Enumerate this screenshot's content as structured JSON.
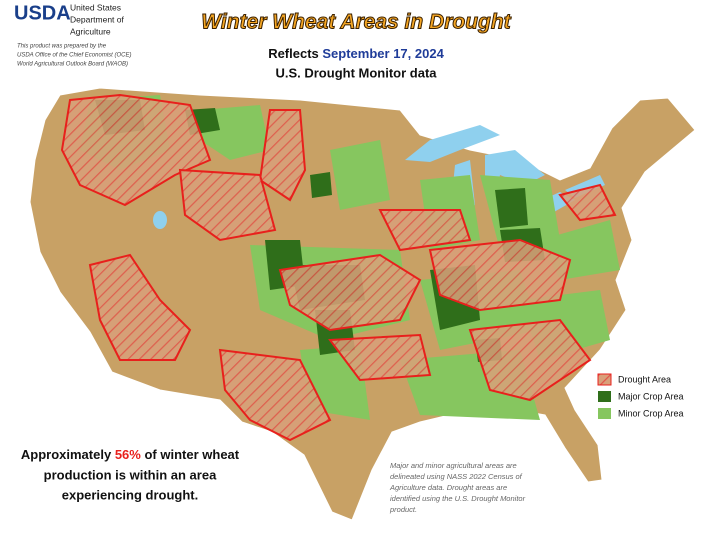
{
  "header": {
    "logo": "USDA",
    "agency": [
      "United States",
      "Department of",
      "Agriculture"
    ],
    "disclaimer": [
      "This product was prepared by the",
      "USDA Office of the Chief Economist (OCE)",
      "World Agricultural Outlook Board (WAOB)"
    ]
  },
  "title": "Winter Wheat Areas in Drought",
  "subtitle": {
    "prefix": "Reflects",
    "date": "September 17, 2024",
    "source": "U.S. Drought Monitor data"
  },
  "legend": [
    "Drought Area",
    "Major Crop Area",
    "Minor Crop Area"
  ],
  "summary": {
    "pre": "Approximately",
    "share": "56%",
    "post": "of winter wheat",
    "line2": "production is within an area",
    "line3": "experiencing drought."
  },
  "note": [
    "Major and minor agricultural areas are",
    "delineated using NASS 2022 Census of",
    "Agriculture data.  Drought areas are",
    "identified using the U.S. Drought Monitor",
    "product."
  ]
}
